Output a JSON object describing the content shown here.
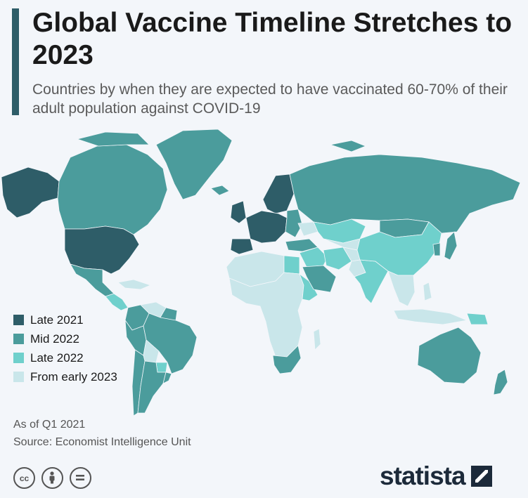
{
  "header": {
    "title": "Global Vaccine Timeline Stretches to 2023",
    "subtitle": "Countries by when they are expected to have vaccinated 60-70% of their adult population against COVID-19"
  },
  "legend": [
    {
      "label": "Late 2021",
      "color": "#2e5d68"
    },
    {
      "label": "Mid 2022",
      "color": "#4b9c9c"
    },
    {
      "label": "Late 2022",
      "color": "#6fd0cc"
    },
    {
      "label": "From early 2023",
      "color": "#c9e6ea"
    }
  ],
  "footer": {
    "note": "As of Q1 2021",
    "source": "Source: Economist Intelligence Unit",
    "license_icons": [
      "cc-icon",
      "attribution-icon",
      "no-derivatives-icon"
    ],
    "brand": "statista"
  },
  "map": {
    "regions": [
      {
        "name": "alaska",
        "category": "Late 2021"
      },
      {
        "name": "canada",
        "category": "Mid 2022"
      },
      {
        "name": "united-states",
        "category": "Late 2021"
      },
      {
        "name": "greenland",
        "category": "Mid 2022"
      },
      {
        "name": "iceland",
        "category": "Mid 2022"
      },
      {
        "name": "mexico",
        "category": "Mid 2022"
      },
      {
        "name": "central-america",
        "category": "Late 2022"
      },
      {
        "name": "caribbean",
        "category": "From early 2023"
      },
      {
        "name": "colombia",
        "category": "Mid 2022"
      },
      {
        "name": "venezuela",
        "category": "From early 2023"
      },
      {
        "name": "guianas",
        "category": "Mid 2022"
      },
      {
        "name": "brazil",
        "category": "Mid 2022"
      },
      {
        "name": "peru",
        "category": "Mid 2022"
      },
      {
        "name": "bolivia",
        "category": "From early 2023"
      },
      {
        "name": "chile",
        "category": "Mid 2022"
      },
      {
        "name": "argentina",
        "category": "Mid 2022"
      },
      {
        "name": "paraguay",
        "category": "Late 2022"
      },
      {
        "name": "uruguay",
        "category": "Mid 2022"
      },
      {
        "name": "scandinavia",
        "category": "Late 2021"
      },
      {
        "name": "uk-ireland",
        "category": "Late 2021"
      },
      {
        "name": "western-europe",
        "category": "Late 2021"
      },
      {
        "name": "iberia",
        "category": "Late 2021"
      },
      {
        "name": "eastern-europe",
        "category": "Mid 2022"
      },
      {
        "name": "ukraine",
        "category": "From early 2023"
      },
      {
        "name": "russia",
        "category": "Mid 2022"
      },
      {
        "name": "turkey",
        "category": "Mid 2022"
      },
      {
        "name": "north-africa",
        "category": "From early 2023"
      },
      {
        "name": "egypt",
        "category": "Late 2022"
      },
      {
        "name": "middle-east",
        "category": "Late 2022"
      },
      {
        "name": "saudi-arabia",
        "category": "Mid 2022"
      },
      {
        "name": "iran",
        "category": "Late 2022"
      },
      {
        "name": "kazakhstan",
        "category": "Late 2022"
      },
      {
        "name": "central-asia",
        "category": "From early 2023"
      },
      {
        "name": "afghanistan",
        "category": "From early 2023"
      },
      {
        "name": "pakistan",
        "category": "From early 2023"
      },
      {
        "name": "india",
        "category": "Late 2022"
      },
      {
        "name": "china",
        "category": "Late 2022"
      },
      {
        "name": "mongolia",
        "category": "Mid 2022"
      },
      {
        "name": "korea",
        "category": "Mid 2022"
      },
      {
        "name": "japan",
        "category": "Mid 2022"
      },
      {
        "name": "southeast-asia",
        "category": "From early 2023"
      },
      {
        "name": "indonesia",
        "category": "From early 2023"
      },
      {
        "name": "philippines",
        "category": "From early 2023"
      },
      {
        "name": "sub-saharan-africa",
        "category": "From early 2023"
      },
      {
        "name": "east-africa",
        "category": "Late 2022"
      },
      {
        "name": "south-africa",
        "category": "Mid 2022"
      },
      {
        "name": "madagascar",
        "category": "From early 2023"
      },
      {
        "name": "australia",
        "category": "Mid 2022"
      },
      {
        "name": "new-zealand",
        "category": "Mid 2022"
      },
      {
        "name": "papua-new-guinea",
        "category": "Late 2022"
      }
    ]
  }
}
